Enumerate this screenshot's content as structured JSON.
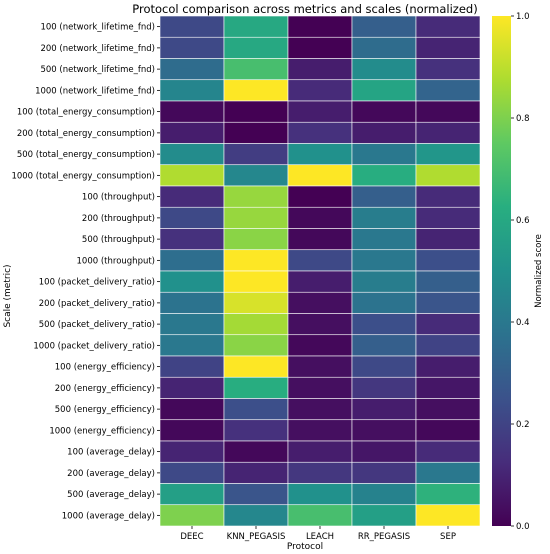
{
  "chart_data": {
    "type": "heatmap",
    "title": "Protocol comparison across metrics and scales (normalized)",
    "xlabel": "Protocol",
    "ylabel": "Scale (metric)",
    "colorbar_label": "Normalized score",
    "colormap": "viridis",
    "vmin": 0.0,
    "vmax": 1.0,
    "colorbar_ticks": [
      "0.0",
      "0.2",
      "0.4",
      "0.6",
      "0.8",
      "1.0"
    ],
    "columns": [
      "DEEC",
      "KNN_PEGASIS",
      "LEACH",
      "RR_PEGASIS",
      "SEP"
    ],
    "rows": [
      "100 (network_lifetime_fnd)",
      "200 (network_lifetime_fnd)",
      "500 (network_lifetime_fnd)",
      "1000 (network_lifetime_fnd)",
      "100 (total_energy_consumption)",
      "200 (total_energy_consumption)",
      "500 (total_energy_consumption)",
      "1000 (total_energy_consumption)",
      "100 (throughput)",
      "200 (throughput)",
      "500 (throughput)",
      "1000 (throughput)",
      "100 (packet_delivery_ratio)",
      "200 (packet_delivery_ratio)",
      "500 (packet_delivery_ratio)",
      "1000 (packet_delivery_ratio)",
      "100 (energy_efficiency)",
      "200 (energy_efficiency)",
      "500 (energy_efficiency)",
      "1000 (energy_efficiency)",
      "100 (average_delay)",
      "200 (average_delay)",
      "500 (average_delay)",
      "1000 (average_delay)"
    ],
    "values": [
      [
        0.22,
        0.6,
        0.0,
        0.3,
        0.12
      ],
      [
        0.22,
        0.6,
        0.0,
        0.35,
        0.1
      ],
      [
        0.35,
        0.7,
        0.08,
        0.48,
        0.14
      ],
      [
        0.45,
        1.0,
        0.12,
        0.58,
        0.32
      ],
      [
        0.02,
        0.0,
        0.08,
        0.02,
        0.02
      ],
      [
        0.08,
        0.0,
        0.14,
        0.08,
        0.1
      ],
      [
        0.48,
        0.18,
        0.5,
        0.4,
        0.52
      ],
      [
        0.88,
        0.46,
        1.0,
        0.62,
        0.88
      ],
      [
        0.12,
        0.84,
        0.0,
        0.3,
        0.12
      ],
      [
        0.22,
        0.84,
        0.02,
        0.42,
        0.12
      ],
      [
        0.14,
        0.82,
        0.02,
        0.4,
        0.1
      ],
      [
        0.36,
        1.0,
        0.22,
        0.4,
        0.24
      ],
      [
        0.5,
        1.0,
        0.08,
        0.42,
        0.3
      ],
      [
        0.38,
        0.94,
        0.04,
        0.38,
        0.26
      ],
      [
        0.4,
        0.86,
        0.04,
        0.24,
        0.12
      ],
      [
        0.4,
        0.82,
        0.02,
        0.3,
        0.2
      ],
      [
        0.2,
        1.0,
        0.04,
        0.22,
        0.08
      ],
      [
        0.1,
        0.62,
        0.04,
        0.16,
        0.06
      ],
      [
        0.02,
        0.24,
        0.04,
        0.08,
        0.04
      ],
      [
        0.02,
        0.14,
        0.04,
        0.04,
        0.02
      ],
      [
        0.1,
        0.02,
        0.08,
        0.06,
        0.12
      ],
      [
        0.22,
        0.1,
        0.16,
        0.16,
        0.4
      ],
      [
        0.56,
        0.26,
        0.5,
        0.44,
        0.64
      ],
      [
        0.8,
        0.46,
        0.7,
        0.56,
        1.0
      ]
    ]
  }
}
